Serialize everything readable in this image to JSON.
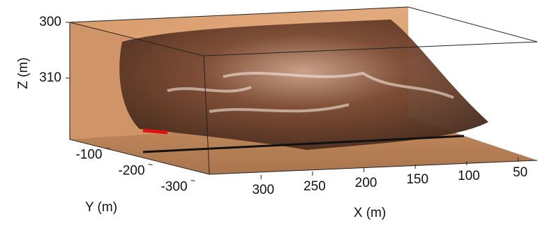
{
  "chart_data": {
    "type": "isosurface",
    "xlabel": "X (m)",
    "ylabel": "Y (m)",
    "zlabel": "Z (m)",
    "xlim": [
      330,
      30
    ],
    "xticks": [
      300,
      250,
      200,
      150,
      100,
      50
    ],
    "ylim": [
      -50,
      -350
    ],
    "yticks": [
      -100,
      -200,
      -300
    ],
    "zlim": [
      298,
      318
    ],
    "zticks": [
      300,
      310
    ]
  }
}
